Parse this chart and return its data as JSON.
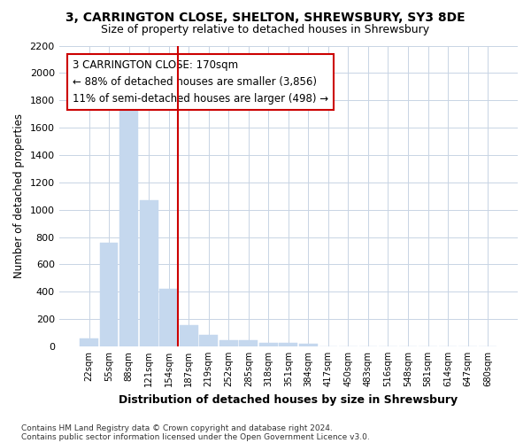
{
  "title1": "3, CARRINGTON CLOSE, SHELTON, SHREWSBURY, SY3 8DE",
  "title2": "Size of property relative to detached houses in Shrewsbury",
  "xlabel": "Distribution of detached houses by size in Shrewsbury",
  "ylabel": "Number of detached properties",
  "footnote1": "Contains HM Land Registry data © Crown copyright and database right 2024.",
  "footnote2": "Contains public sector information licensed under the Open Government Licence v3.0.",
  "annotation_line1": "3 CARRINGTON CLOSE: 170sqm",
  "annotation_line2": "← 88% of detached houses are smaller (3,856)",
  "annotation_line3": "11% of semi-detached houses are larger (498) →",
  "bin_labels": [
    "22sqm",
    "55sqm",
    "88sqm",
    "121sqm",
    "154sqm",
    "187sqm",
    "219sqm",
    "252sqm",
    "285sqm",
    "318sqm",
    "351sqm",
    "384sqm",
    "417sqm",
    "450sqm",
    "483sqm",
    "516sqm",
    "548sqm",
    "581sqm",
    "614sqm",
    "647sqm",
    "680sqm"
  ],
  "bar_values": [
    55,
    760,
    1740,
    1070,
    420,
    155,
    85,
    48,
    42,
    28,
    25,
    20,
    0,
    0,
    0,
    0,
    0,
    0,
    0,
    0,
    0
  ],
  "bar_color": "#c5d8ee",
  "bar_edge_color": "#c5d8ee",
  "grid_color": "#c8d4e4",
  "background_color": "#ffffff",
  "plot_bg_color": "#ffffff",
  "vline_color": "#cc0000",
  "annotation_border_color": "#cc0000",
  "ylim": [
    0,
    2200
  ],
  "yticks": [
    0,
    200,
    400,
    600,
    800,
    1000,
    1200,
    1400,
    1600,
    1800,
    2000,
    2200
  ]
}
